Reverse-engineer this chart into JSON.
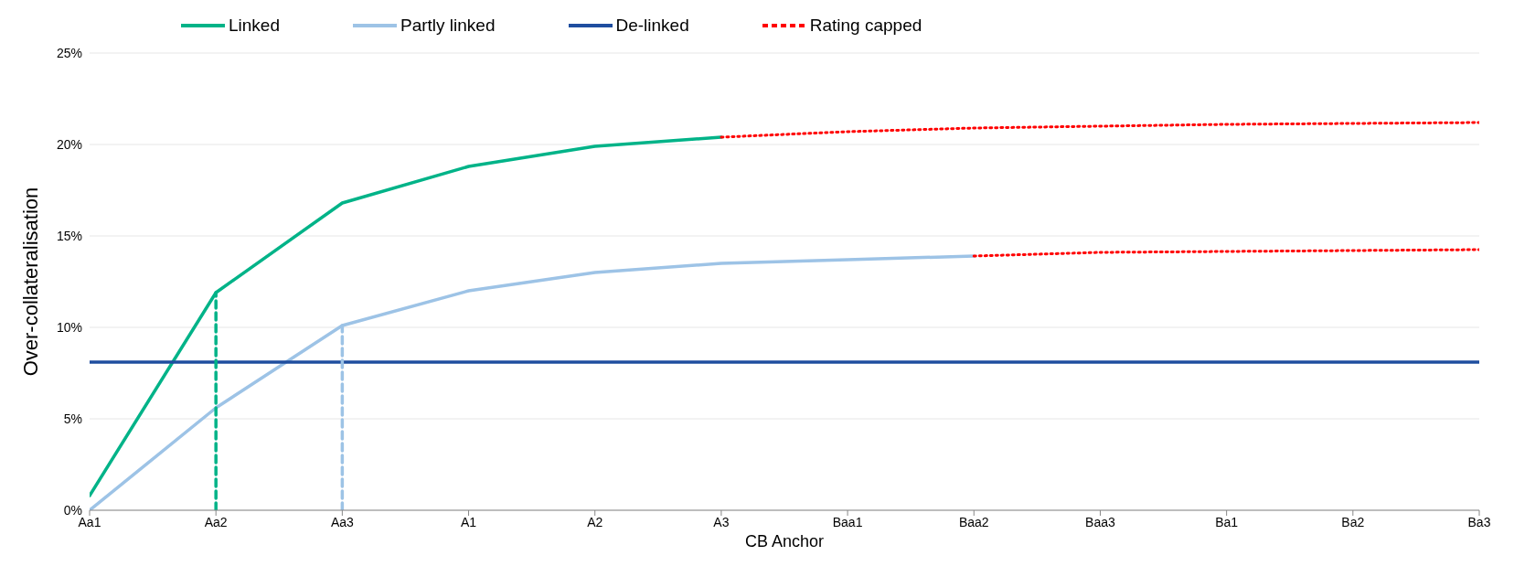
{
  "chart_data": {
    "type": "line",
    "xlabel": "CB Anchor",
    "ylabel": "Over-collateralisation",
    "categories": [
      "Aa1",
      "Aa2",
      "Aa3",
      "A1",
      "A2",
      "A3",
      "Baa1",
      "Baa2",
      "Baa3",
      "Ba1",
      "Ba2",
      "Ba3"
    ],
    "ylim": [
      0,
      25
    ],
    "yticks": [
      {
        "value": 0,
        "label": "0%"
      },
      {
        "value": 5,
        "label": "5%"
      },
      {
        "value": 10,
        "label": "10%"
      },
      {
        "value": 15,
        "label": "15%"
      },
      {
        "value": 20,
        "label": "20%"
      },
      {
        "value": 25,
        "label": "25%"
      }
    ],
    "grid": "y",
    "legend": "top",
    "marker": "none",
    "series": [
      {
        "name": "Linked",
        "color": "#00b388",
        "line_style": "solid",
        "values": [
          0.8,
          11.9,
          16.8,
          18.8,
          19.9,
          20.4,
          null,
          null,
          null,
          null,
          null,
          null
        ]
      },
      {
        "name": "Partly linked",
        "color": "#9dc3e6",
        "line_style": "solid",
        "values": [
          0,
          5.6,
          10.1,
          12.0,
          13.0,
          13.5,
          13.7,
          13.9,
          null,
          null,
          null,
          null
        ]
      },
      {
        "name": "De-linked",
        "color": "#1f4e9f",
        "line_style": "solid",
        "values": [
          8.1,
          8.1,
          8.1,
          8.1,
          8.1,
          8.1,
          8.1,
          8.1,
          8.1,
          8.1,
          8.1,
          8.1
        ]
      },
      {
        "name": "Rating capped",
        "color": "#ff0000",
        "line_style": "dotted",
        "values": [
          null,
          null,
          null,
          null,
          null,
          20.4,
          20.7,
          20.9,
          21.0,
          21.1,
          21.15,
          21.2
        ]
      },
      {
        "color": "#ff0000",
        "line_style": "dotted",
        "values": [
          null,
          null,
          null,
          null,
          null,
          null,
          null,
          13.9,
          14.1,
          14.15,
          14.2,
          14.25
        ]
      },
      {
        "color": "#00b388",
        "line_style": "dashed",
        "x": [
          "Aa2",
          "Aa2"
        ],
        "values": [
          0,
          11.9
        ]
      },
      {
        "color": "#9dc3e6",
        "line_style": "dashed",
        "x": [
          "Aa3",
          "Aa3"
        ],
        "values": [
          0,
          10.1
        ]
      }
    ]
  }
}
